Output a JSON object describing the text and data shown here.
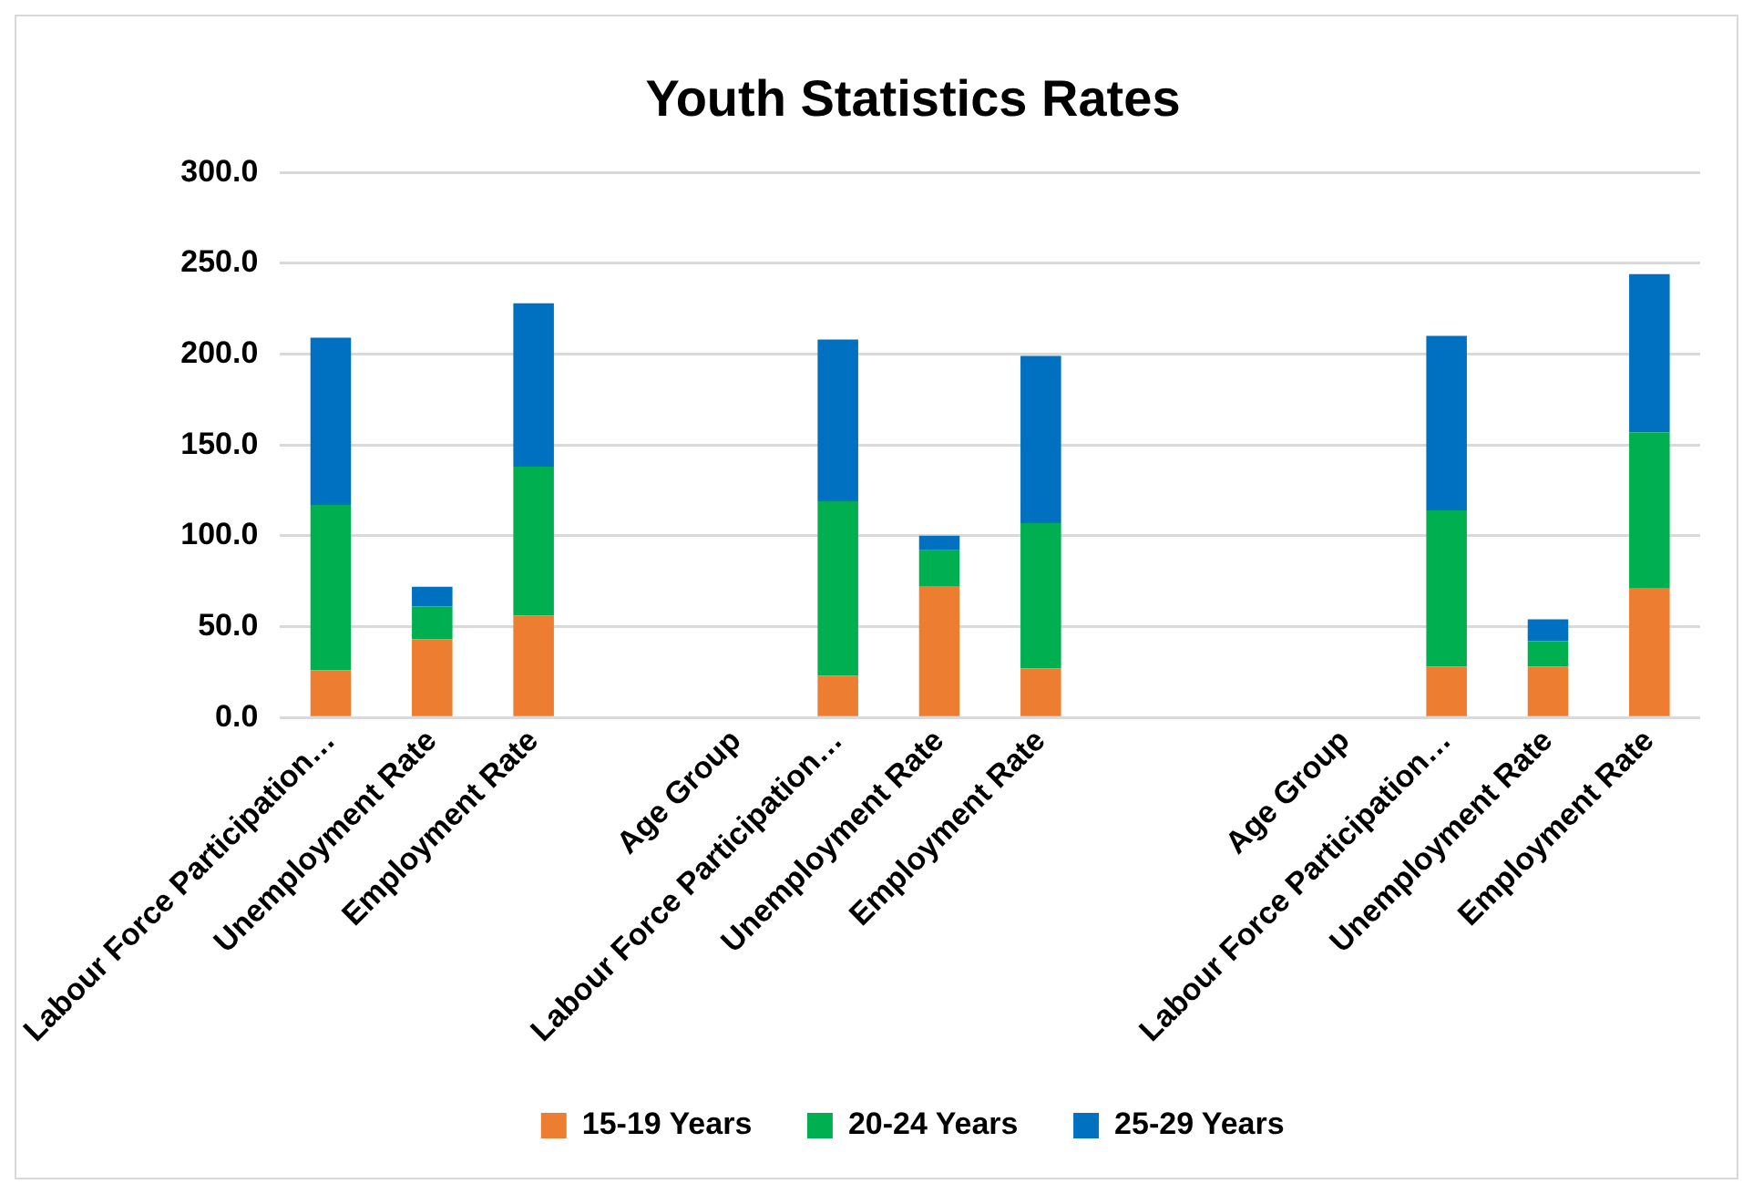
{
  "chart_data": {
    "type": "bar",
    "title": "Youth Statistics Rates",
    "categories": [
      "Labour Force Participation…",
      "Unemployment Rate",
      "Employment Rate",
      null,
      "Age Group",
      "Labour Force Participation…",
      "Unemployment Rate",
      "Employment Rate",
      null,
      null,
      "Age Group",
      "Labour Force Participation…",
      "Unemployment Rate",
      "Employment Rate"
    ],
    "series": [
      {
        "name": "15-19 Years",
        "color": "#ed7d31",
        "values": [
          26,
          43,
          56,
          null,
          null,
          23,
          72,
          27,
          null,
          null,
          null,
          28,
          28,
          71
        ]
      },
      {
        "name": "20-24 Years",
        "color": "#00b050",
        "values": [
          91,
          18,
          82,
          null,
          null,
          96,
          20,
          80,
          null,
          null,
          null,
          86,
          14,
          86
        ]
      },
      {
        "name": "25-29 Years",
        "color": "#0070c0",
        "values": [
          92,
          11,
          90,
          null,
          null,
          89,
          8,
          92,
          null,
          null,
          null,
          96,
          12,
          87
        ]
      }
    ],
    "stacked": true,
    "ylim": [
      0,
      300
    ],
    "yticks": [
      {
        "value": 0,
        "label": "0.0"
      },
      {
        "value": 50,
        "label": "50.0"
      },
      {
        "value": 100,
        "label": "100.0"
      },
      {
        "value": 150,
        "label": "150.0"
      },
      {
        "value": 200,
        "label": "200.0"
      },
      {
        "value": 250,
        "label": "250.0"
      },
      {
        "value": 300,
        "label": "300.0"
      }
    ],
    "grid": "y",
    "legend": "bottom"
  }
}
